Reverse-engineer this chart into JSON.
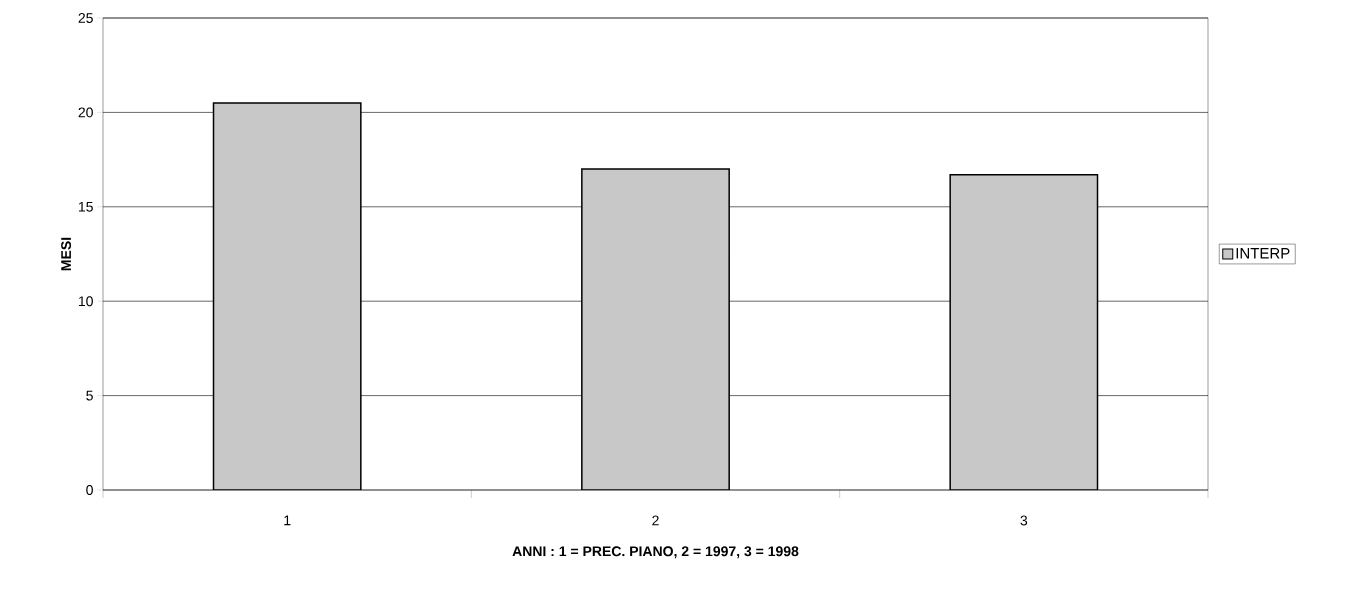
{
  "chart_data": {
    "type": "bar",
    "xlabel": "ANNI : 1 = PREC. PIANO, 2 = 1997, 3 = 1998",
    "ylabel": "MESI",
    "categories": [
      "1",
      "2",
      "3"
    ],
    "series": [
      {
        "name": "INTERP",
        "color": "#c8c8c8",
        "values": [
          20.5,
          17,
          16.7
        ]
      }
    ],
    "ylim": [
      0,
      25
    ],
    "yticks": [
      0,
      5,
      10,
      15,
      20,
      25
    ],
    "grid": "y",
    "legend": "right"
  }
}
